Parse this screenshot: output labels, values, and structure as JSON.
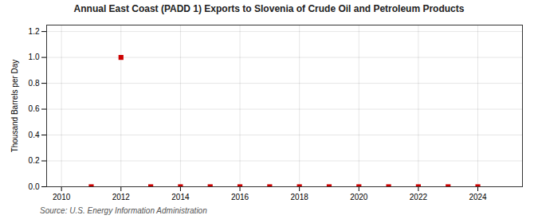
{
  "chart_data": {
    "type": "scatter",
    "title": "Annual East Coast (PADD 1) Exports to Slovenia of Crude Oil and Petroleum Products",
    "ylabel": "Thousand Barrels per Day",
    "source": "Source: U.S. Energy Information Administration",
    "x": [
      2011,
      2012,
      2013,
      2014,
      2015,
      2016,
      2017,
      2018,
      2019,
      2020,
      2021,
      2022,
      2023,
      2024
    ],
    "values": [
      0.0,
      1.0,
      0.0,
      0.0,
      0.0,
      0.0,
      0.0,
      0.0,
      0.0,
      0.0,
      0.0,
      0.0,
      0.0,
      0.0
    ],
    "color": "#cc0000",
    "marker": "square",
    "xlim": [
      2009.5,
      2025.5
    ],
    "xticks": [
      2010,
      2012,
      2014,
      2016,
      2018,
      2020,
      2022,
      2024
    ],
    "ylim": [
      0.0,
      1.25
    ],
    "yticks": [
      {
        "value": 0,
        "label": "0.0"
      },
      0.2,
      0.4,
      0.6,
      0.8,
      {
        "value": 1,
        "label": "1.0"
      },
      1.2
    ],
    "grid": true
  }
}
